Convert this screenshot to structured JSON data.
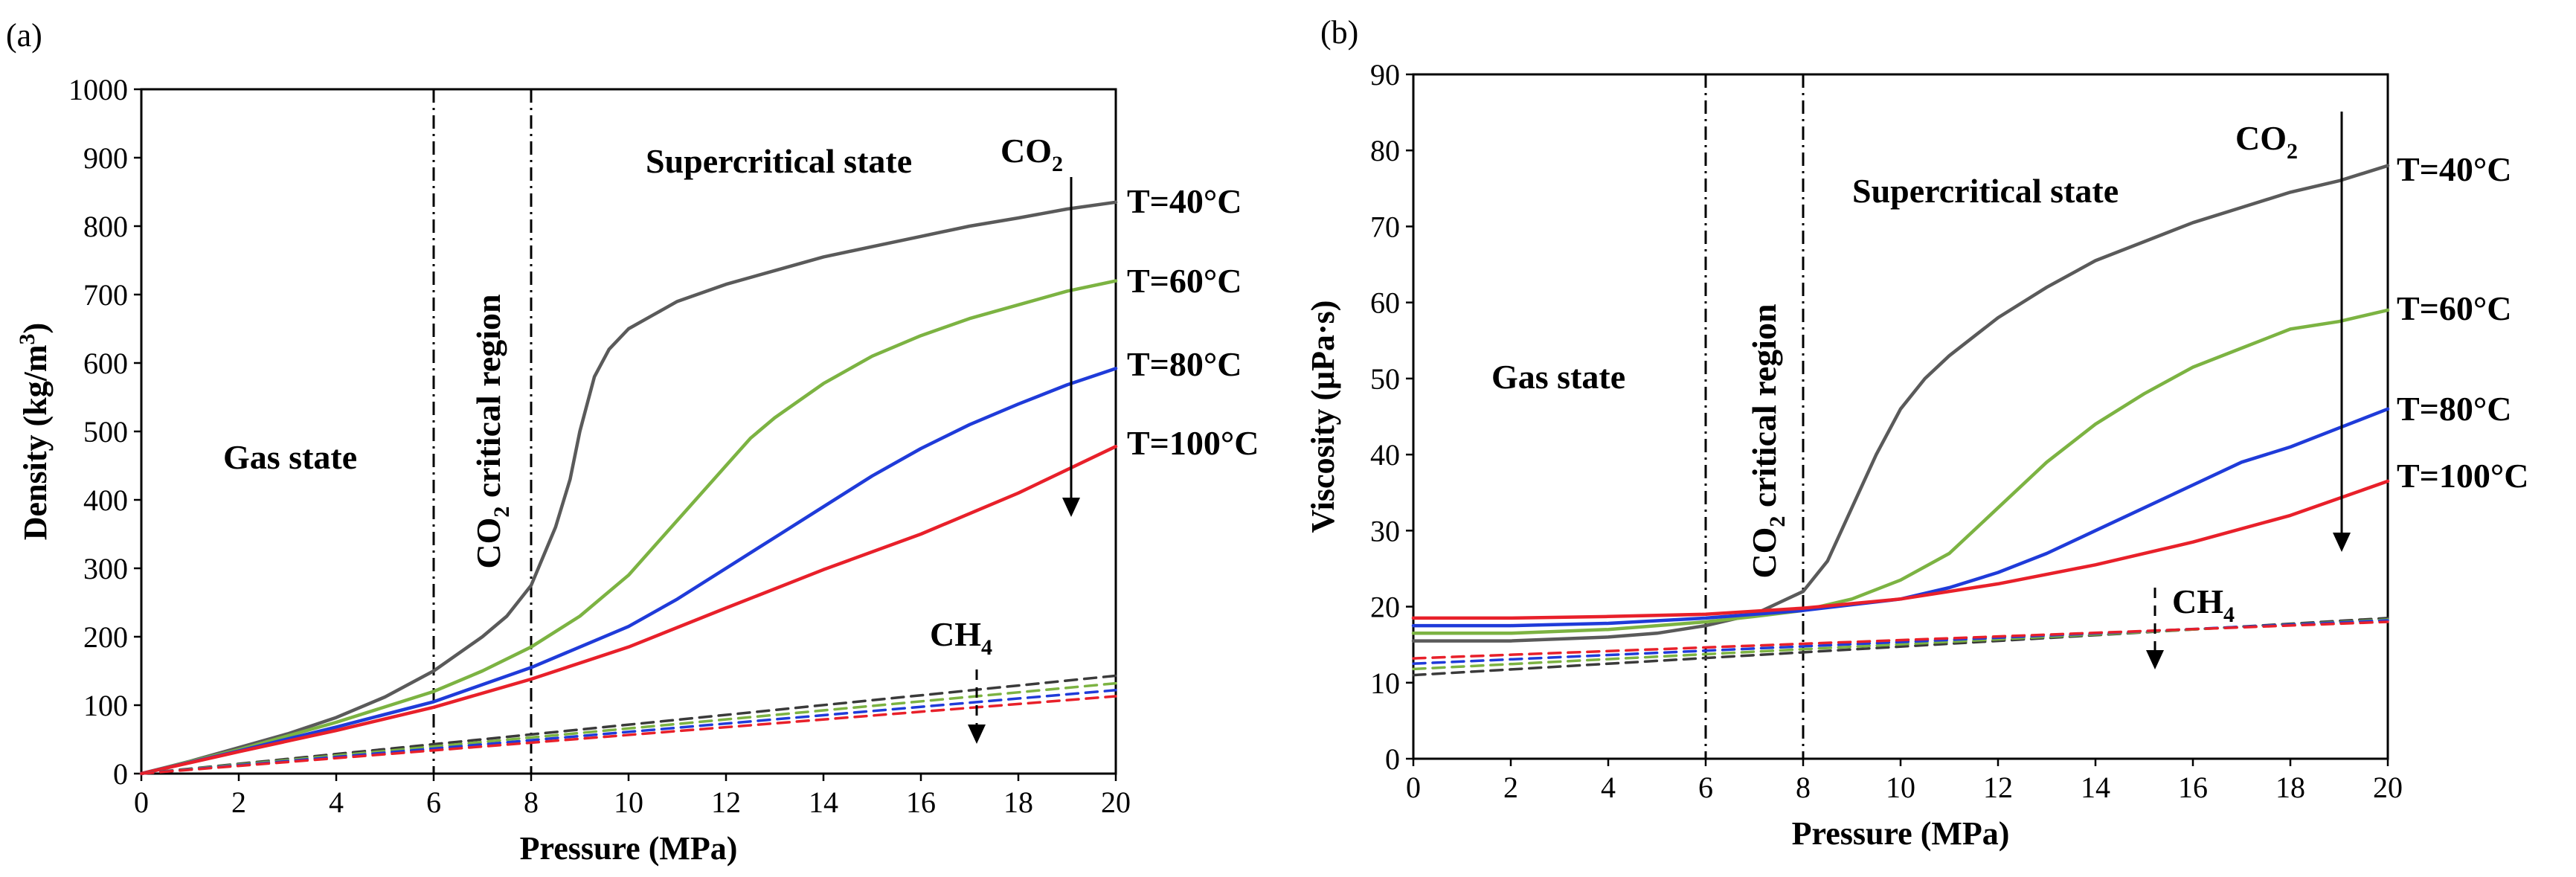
{
  "chart_data": [
    {
      "panel_label": "(a)",
      "type": "line",
      "xlabel": "Pressure (MPa)",
      "ylabel": {
        "prefix": "Density (kg/m",
        "sup": "3",
        "suffix": ")"
      },
      "xlim": [
        0,
        20
      ],
      "ylim": [
        0,
        1000
      ],
      "xticks": [
        0,
        2,
        4,
        6,
        8,
        10,
        12,
        14,
        16,
        18,
        20
      ],
      "yticks": [
        0,
        100,
        200,
        300,
        400,
        500,
        600,
        700,
        800,
        900,
        1000
      ],
      "vlines": [
        6,
        8
      ],
      "regions": {
        "gas": "Gas state",
        "critical_prefix": "CO",
        "critical_sub": "2",
        "critical_suffix": " critical region",
        "supercritical": "Supercritical state"
      },
      "species": {
        "co2_main": "CO",
        "co2_sub": "2",
        "ch4_main": "CH",
        "ch4_sub": "4"
      },
      "series": [
        {
          "name": "CO2 T=40°C",
          "label": "T=40°C",
          "color": "#5a5a5a",
          "style": "solid",
          "x": [
            0,
            1,
            2,
            3,
            4,
            5,
            6,
            7,
            7.5,
            8,
            8.5,
            8.8,
            9,
            9.3,
            9.6,
            10,
            10.5,
            11,
            12,
            13,
            14,
            15,
            16,
            17,
            18,
            19,
            20
          ],
          "y": [
            0,
            18,
            38,
            58,
            82,
            112,
            150,
            200,
            230,
            275,
            360,
            430,
            500,
            580,
            620,
            650,
            670,
            690,
            715,
            735,
            755,
            770,
            785,
            800,
            812,
            825,
            835
          ]
        },
        {
          "name": "CO2 T=60°C",
          "label": "T=60°C",
          "color": "#7cb342",
          "style": "solid",
          "x": [
            0,
            2,
            4,
            6,
            7,
            8,
            9,
            10,
            11,
            12,
            12.5,
            13,
            14,
            15,
            16,
            17,
            18,
            19,
            20
          ],
          "y": [
            0,
            35,
            75,
            120,
            150,
            185,
            230,
            290,
            370,
            450,
            490,
            520,
            570,
            610,
            640,
            665,
            685,
            705,
            720
          ]
        },
        {
          "name": "CO2 T=80°C",
          "label": "T=80°C",
          "color": "#1f3bd9",
          "style": "solid",
          "x": [
            0,
            2,
            4,
            6,
            8,
            10,
            11,
            12,
            13,
            14,
            15,
            16,
            17,
            18,
            19,
            20
          ],
          "y": [
            0,
            33,
            68,
            105,
            155,
            215,
            255,
            300,
            345,
            390,
            435,
            475,
            510,
            540,
            568,
            592
          ]
        },
        {
          "name": "CO2 T=100°C",
          "label": "T=100°C",
          "color": "#e8202a",
          "style": "solid",
          "x": [
            0,
            2,
            4,
            6,
            8,
            10,
            12,
            14,
            16,
            18,
            20
          ],
          "y": [
            0,
            32,
            63,
            97,
            138,
            185,
            242,
            298,
            350,
            410,
            478
          ]
        },
        {
          "name": "CH4 T=40°C",
          "color": "#3a3a3a",
          "style": "dashed",
          "x": [
            0,
            20
          ],
          "y": [
            0,
            143
          ]
        },
        {
          "name": "CH4 T=60°C",
          "color": "#7cb342",
          "style": "dashed",
          "x": [
            0,
            20
          ],
          "y": [
            0,
            132
          ]
        },
        {
          "name": "CH4 T=80°C",
          "color": "#1f3bd9",
          "style": "dashed",
          "x": [
            0,
            20
          ],
          "y": [
            0,
            122
          ]
        },
        {
          "name": "CH4 T=100°C",
          "color": "#e8202a",
          "style": "dashed",
          "x": [
            0,
            20
          ],
          "y": [
            0,
            113
          ]
        }
      ]
    },
    {
      "panel_label": "(b)",
      "type": "line",
      "xlabel": "Pressure (MPa)",
      "ylabel": {
        "prefix": "Viscosity (μPa·s)",
        "sup": "",
        "suffix": ""
      },
      "xlim": [
        0,
        20
      ],
      "ylim": [
        0,
        90
      ],
      "xticks": [
        0,
        2,
        4,
        6,
        8,
        10,
        12,
        14,
        16,
        18,
        20
      ],
      "yticks": [
        0,
        10,
        20,
        30,
        40,
        50,
        60,
        70,
        80,
        90
      ],
      "vlines": [
        6,
        8
      ],
      "regions": {
        "gas": "Gas state",
        "critical_prefix": "CO",
        "critical_sub": "2",
        "critical_suffix": " critical region",
        "supercritical": "Supercritical state"
      },
      "species": {
        "co2_main": "CO",
        "co2_sub": "2",
        "ch4_main": "CH",
        "ch4_sub": "4"
      },
      "series": [
        {
          "name": "CO2 T=40°C",
          "label": "T=40°C",
          "color": "#5a5a5a",
          "style": "solid",
          "x": [
            0,
            2,
            4,
            5,
            6,
            7,
            7.5,
            8,
            8.5,
            9,
            9.5,
            10,
            10.5,
            11,
            12,
            13,
            14,
            15,
            16,
            17,
            18,
            19,
            20
          ],
          "y": [
            15.5,
            15.5,
            16,
            16.5,
            17.5,
            19,
            20.5,
            22,
            26,
            33,
            40,
            46,
            50,
            53,
            58,
            62,
            65.5,
            68,
            70.5,
            72.5,
            74.5,
            76,
            78
          ]
        },
        {
          "name": "CO2 T=60°C",
          "label": "T=60°C",
          "color": "#7cb342",
          "style": "solid",
          "x": [
            0,
            2,
            4,
            6,
            7,
            8,
            9,
            10,
            11,
            12,
            13,
            14,
            15,
            16,
            17,
            18,
            19,
            20
          ],
          "y": [
            16.5,
            16.5,
            17,
            18,
            18.7,
            19.5,
            21,
            23.5,
            27,
            33,
            39,
            44,
            48,
            51.5,
            54,
            56.5,
            57.5,
            59
          ]
        },
        {
          "name": "CO2 T=80°C",
          "label": "T=80°C",
          "color": "#1f3bd9",
          "style": "solid",
          "x": [
            0,
            2,
            4,
            6,
            8,
            10,
            11,
            12,
            13,
            14,
            15,
            16,
            17,
            18,
            19,
            20
          ],
          "y": [
            17.5,
            17.5,
            17.8,
            18.5,
            19.5,
            21,
            22.5,
            24.5,
            27,
            30,
            33,
            36,
            39,
            41,
            43.5,
            46
          ]
        },
        {
          "name": "CO2 T=100°C",
          "label": "T=100°C",
          "color": "#e8202a",
          "style": "solid",
          "x": [
            0,
            2,
            4,
            6,
            8,
            10,
            12,
            14,
            16,
            18,
            20
          ],
          "y": [
            18.5,
            18.5,
            18.7,
            19,
            19.8,
            21,
            23,
            25.5,
            28.5,
            32,
            36.5
          ]
        },
        {
          "name": "CH4 T=40°C",
          "color": "#3a3a3a",
          "style": "dashed",
          "x": [
            0,
            20
          ],
          "y": [
            11,
            18.5
          ]
        },
        {
          "name": "CH4 T=60°C",
          "color": "#7cb342",
          "style": "dashed",
          "x": [
            0,
            20
          ],
          "y": [
            11.8,
            18.3
          ]
        },
        {
          "name": "CH4 T=80°C",
          "color": "#1f3bd9",
          "style": "dashed",
          "x": [
            0,
            20
          ],
          "y": [
            12.5,
            18.2
          ]
        },
        {
          "name": "CH4 T=100°C",
          "color": "#e8202a",
          "style": "dashed",
          "x": [
            0,
            20
          ],
          "y": [
            13.2,
            18
          ]
        }
      ]
    }
  ]
}
